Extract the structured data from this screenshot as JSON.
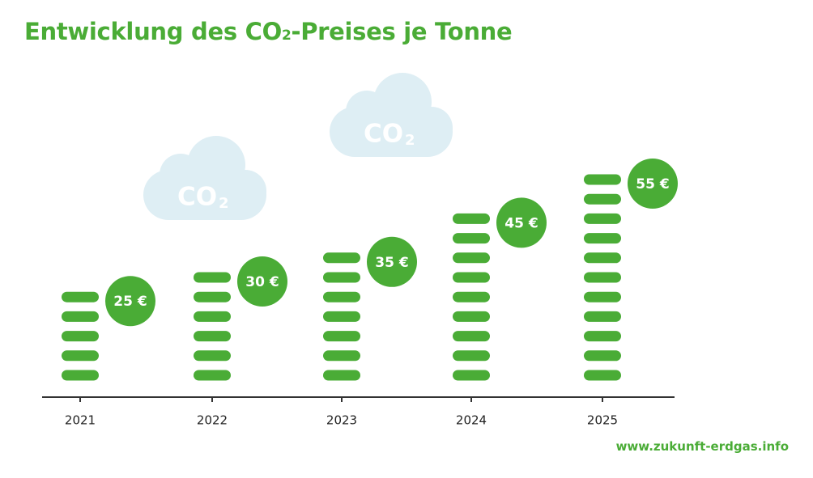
{
  "title": {
    "main": "Entwicklung des CO",
    "sub": "2",
    "rest": "-Preises je Tonne"
  },
  "clouds": [
    {
      "label": "CO",
      "sub": "2"
    },
    {
      "label": "CO",
      "sub": "2"
    }
  ],
  "source": "www.zukunft-erdgas.info",
  "colors": {
    "accent": "#4aac36",
    "cloud": "#deeef4",
    "axis": "#333333",
    "text": "#222222"
  },
  "chart_data": {
    "type": "bar",
    "title": "Entwicklung des CO2-Preises je Tonne",
    "xlabel": "",
    "ylabel": "",
    "categories": [
      "2021",
      "2022",
      "2023",
      "2024",
      "2025"
    ],
    "values": [
      25,
      30,
      35,
      45,
      55
    ],
    "value_labels": [
      "25 €",
      "30 €",
      "35 €",
      "45 €",
      "55 €"
    ],
    "unit": "€",
    "grid": false,
    "legend": "none"
  }
}
